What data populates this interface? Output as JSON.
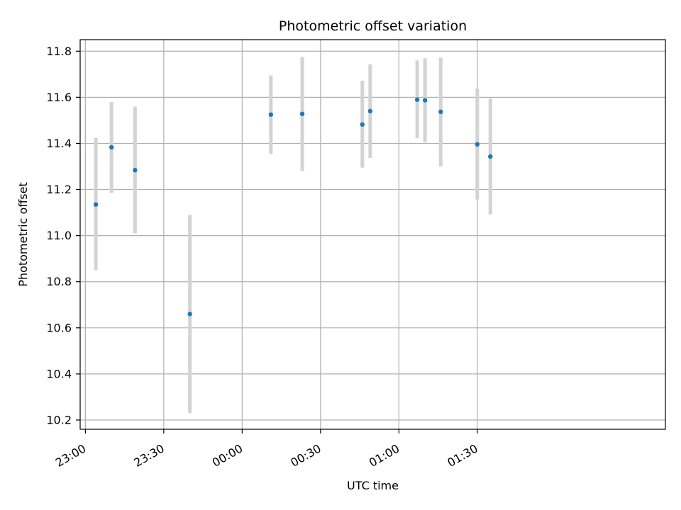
{
  "chart_data": {
    "type": "scatter",
    "title": "Photometric offset variation",
    "xlabel": "UTC time",
    "ylabel": "Photometric offset",
    "x_ticks": [
      "23:00",
      "23:30",
      "00:00",
      "00:30",
      "01:00",
      "01:30"
    ],
    "y_ticks": [
      "10.2",
      "10.4",
      "10.6",
      "10.8",
      "11.0",
      "11.2",
      "11.4",
      "11.6",
      "11.8"
    ],
    "xlim": [
      "22:58",
      "02:42"
    ],
    "ylim": [
      10.16,
      11.85
    ],
    "grid": true,
    "colors": {
      "points": "#1f77b4",
      "error_bars": "#d3d3d3",
      "grid": "#b0b0b0"
    },
    "series": [
      {
        "points": [
          {
            "time": "23:04",
            "y": 11.135,
            "err_low": 10.85,
            "err_high": 11.425
          },
          {
            "time": "23:10",
            "y": 11.383,
            "err_low": 11.185,
            "err_high": 11.58
          },
          {
            "time": "23:19",
            "y": 11.284,
            "err_low": 11.01,
            "err_high": 11.56
          },
          {
            "time": "23:40",
            "y": 10.66,
            "err_low": 10.23,
            "err_high": 11.09
          },
          {
            "time": "00:11",
            "y": 11.525,
            "err_low": 11.355,
            "err_high": 11.695
          },
          {
            "time": "00:23",
            "y": 11.528,
            "err_low": 11.28,
            "err_high": 11.775
          },
          {
            "time": "00:46",
            "y": 11.482,
            "err_low": 11.295,
            "err_high": 11.672
          },
          {
            "time": "00:49",
            "y": 11.54,
            "err_low": 11.337,
            "err_high": 11.743
          },
          {
            "time": "01:07",
            "y": 11.59,
            "err_low": 11.423,
            "err_high": 11.76
          },
          {
            "time": "01:10",
            "y": 11.587,
            "err_low": 11.405,
            "err_high": 11.769
          },
          {
            "time": "01:16",
            "y": 11.537,
            "err_low": 11.3,
            "err_high": 11.772
          },
          {
            "time": "01:30",
            "y": 11.396,
            "err_low": 11.157,
            "err_high": 11.637
          },
          {
            "time": "01:35",
            "y": 11.343,
            "err_low": 11.092,
            "err_high": 11.595
          }
        ]
      }
    ]
  }
}
